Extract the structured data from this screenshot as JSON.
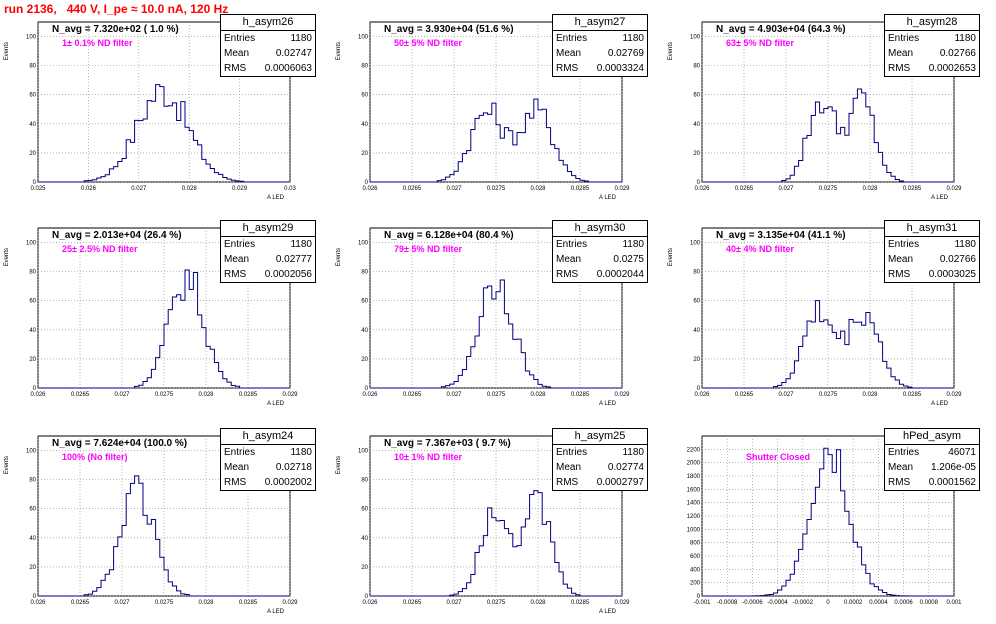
{
  "header": {
    "run_title": "run 2136,   440 V, I_pe ≈ 10.0 nA, 120 Hz",
    "title_color": "#ff0000"
  },
  "colors": {
    "histogram": "#000080",
    "navg_text": "#000000",
    "filter_text": "#ff00ff"
  },
  "chart_data": [
    {
      "type": "bar",
      "name": "h_asym26",
      "navg": "N_avg = 7.320e+02 ( 1.0 %)",
      "filter": "1± 0.1% ND filter",
      "stats": {
        "entries": "1180",
        "mean": "0.02747",
        "rms": "0.0006063"
      },
      "xlabel": "A_LED",
      "ylabel": "Events",
      "xlim": [
        0.0245,
        0.0305
      ],
      "ylim": [
        0,
        110
      ],
      "xticks": [
        "0.025",
        "0.026",
        "0.027",
        "0.028",
        "0.029",
        "0.03"
      ],
      "yticks": [
        "0",
        "20",
        "40",
        "60",
        "80",
        "100"
      ],
      "mean_val": 0.02747,
      "rms_val": 0.0006063,
      "peak": 63,
      "shape": "single"
    },
    {
      "type": "bar",
      "name": "h_asym27",
      "navg": "N_avg = 3.930e+04 (51.6 %)",
      "filter": "50± 5% ND filter",
      "stats": {
        "entries": "1180",
        "mean": "0.02769",
        "rms": "0.0003324"
      },
      "xlabel": "A_LED",
      "ylabel": "Events",
      "xlim": [
        0.026,
        0.029
      ],
      "ylim": [
        0,
        110
      ],
      "xticks": [
        "0.026",
        "0.0265",
        "0.027",
        "0.0275",
        "0.028",
        "0.0285",
        "0.029"
      ],
      "yticks": [
        "0",
        "20",
        "40",
        "60",
        "80",
        "100"
      ],
      "mean_val": 0.02769,
      "rms_val": 0.0003324,
      "peak": 50,
      "shape": "double"
    },
    {
      "type": "bar",
      "name": "h_asym28",
      "navg": "N_avg = 4.903e+04 (64.3 %)",
      "filter": "63± 5% ND filter",
      "stats": {
        "entries": "1180",
        "mean": "0.02766",
        "rms": "0.0002653"
      },
      "xlabel": "A_LED",
      "ylabel": "Events",
      "xlim": [
        0.026,
        0.029
      ],
      "ylim": [
        0,
        110
      ],
      "xticks": [
        "0.026",
        "0.0265",
        "0.027",
        "0.0275",
        "0.028",
        "0.0285",
        "0.029"
      ],
      "yticks": [
        "0",
        "20",
        "40",
        "60",
        "80",
        "100"
      ],
      "mean_val": 0.02766,
      "rms_val": 0.0002653,
      "peak": 58,
      "shape": "double"
    },
    {
      "type": "bar",
      "name": "h_asym29",
      "navg": "N_avg = 2.013e+04 (26.4 %)",
      "filter": "25± 2.5% ND filter",
      "stats": {
        "entries": "1180",
        "mean": "0.02777",
        "rms": "0.0002056"
      },
      "xlabel": "A_LED",
      "ylabel": "Events",
      "xlim": [
        0.026,
        0.029
      ],
      "ylim": [
        0,
        110
      ],
      "xticks": [
        "0.026",
        "0.0265",
        "0.027",
        "0.0275",
        "0.028",
        "0.0285",
        "0.029"
      ],
      "yticks": [
        "0",
        "20",
        "40",
        "60",
        "80",
        "100"
      ],
      "mean_val": 0.02777,
      "rms_val": 0.0002056,
      "peak": 76,
      "shape": "single"
    },
    {
      "type": "bar",
      "name": "h_asym30",
      "navg": "N_avg = 6.128e+04 (80.4 %)",
      "filter": "79± 5% ND filter",
      "stats": {
        "entries": "1180",
        "mean": "0.0275",
        "rms": "0.0002044"
      },
      "xlabel": "A_LED",
      "ylabel": "Events",
      "xlim": [
        0.026,
        0.029
      ],
      "ylim": [
        0,
        110
      ],
      "xticks": [
        "0.026",
        "0.0265",
        "0.027",
        "0.0275",
        "0.028",
        "0.0285",
        "0.029"
      ],
      "yticks": [
        "0",
        "20",
        "40",
        "60",
        "80",
        "100"
      ],
      "mean_val": 0.0275,
      "rms_val": 0.0002044,
      "peak": 75,
      "shape": "single"
    },
    {
      "type": "bar",
      "name": "h_asym31",
      "navg": "N_avg = 3.135e+04 (41.1 %)",
      "filter": "40± 4% ND filter",
      "stats": {
        "entries": "1180",
        "mean": "0.02766",
        "rms": "0.0003025"
      },
      "xlabel": "A_LED",
      "ylabel": "Events",
      "xlim": [
        0.026,
        0.029
      ],
      "ylim": [
        0,
        110
      ],
      "xticks": [
        "0.026",
        "0.0265",
        "0.027",
        "0.0275",
        "0.028",
        "0.0285",
        "0.029"
      ],
      "yticks": [
        "0",
        "20",
        "40",
        "60",
        "80",
        "100"
      ],
      "mean_val": 0.02766,
      "rms_val": 0.0003025,
      "peak": 54,
      "shape": "double"
    },
    {
      "type": "bar",
      "name": "h_asym24",
      "navg": "N_avg = 7.624e+04 (100.0 %)",
      "filter": "100% (No filter)",
      "stats": {
        "entries": "1180",
        "mean": "0.02718",
        "rms": "0.0002002"
      },
      "xlabel": "A_LED",
      "ylabel": "Events",
      "xlim": [
        0.026,
        0.029
      ],
      "ylim": [
        0,
        110
      ],
      "xticks": [
        "0.026",
        "0.0265",
        "0.027",
        "0.0275",
        "0.028",
        "0.0285",
        "0.029"
      ],
      "yticks": [
        "0",
        "20",
        "40",
        "60",
        "80",
        "100"
      ],
      "mean_val": 0.02718,
      "rms_val": 0.0002002,
      "peak": 71,
      "shape": "single"
    },
    {
      "type": "bar",
      "name": "h_asym25",
      "navg": "N_avg = 7.367e+03 ( 9.7 %)",
      "filter": "10± 1% ND filter",
      "stats": {
        "entries": "1180",
        "mean": "0.02774",
        "rms": "0.0002797"
      },
      "xlabel": "A_LED",
      "ylabel": "Events",
      "xlim": [
        0.026,
        0.029
      ],
      "ylim": [
        0,
        110
      ],
      "xticks": [
        "0.026",
        "0.0265",
        "0.027",
        "0.0275",
        "0.028",
        "0.0285",
        "0.029"
      ],
      "yticks": [
        "0",
        "20",
        "40",
        "60",
        "80",
        "100"
      ],
      "mean_val": 0.02774,
      "rms_val": 0.0002797,
      "peak": 65,
      "shape": "double"
    },
    {
      "type": "bar",
      "name": "hPed_asym",
      "navg": "",
      "filter": "Shutter Closed",
      "stats": {
        "entries": "46071",
        "mean": "1.206e-05",
        "rms": "0.0001562"
      },
      "xlabel": "",
      "ylabel": "",
      "xlim": [
        -0.001,
        0.001
      ],
      "ylim": [
        0,
        2400
      ],
      "xticks": [
        "-0.001",
        "-0.0008",
        "-0.0006",
        "-0.0004",
        "-0.0002",
        "0",
        "0.0002",
        "0.0004",
        "0.0006",
        "0.0008",
        "0.001"
      ],
      "yticks": [
        "0",
        "200",
        "400",
        "600",
        "800",
        "1000",
        "1200",
        "1400",
        "1600",
        "1800",
        "2000",
        "2200"
      ],
      "mean_val": 1.206e-05,
      "rms_val": 0.0001562,
      "peak": 2250,
      "shape": "single"
    }
  ],
  "stat_labels": {
    "entries": "Entries",
    "mean": "Mean",
    "rms": "RMS"
  }
}
